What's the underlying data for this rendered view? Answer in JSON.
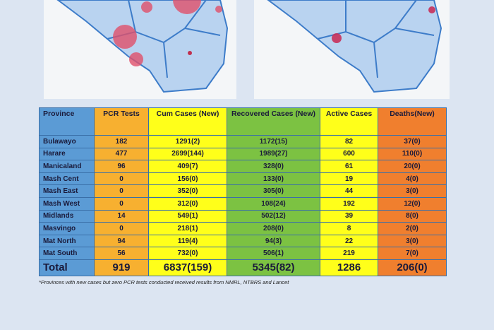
{
  "table": {
    "header": [
      "Province",
      "PCR Tests",
      "Cum Cases (New)",
      "Recovered Cases (New)",
      "Active Cases",
      "Deaths(New)"
    ],
    "rows": [
      [
        "Bulawayo",
        "182",
        "1291(2)",
        "1172(15)",
        "82",
        "37(0)"
      ],
      [
        "Harare",
        "477",
        "2699(144)",
        "1989(27)",
        "600",
        "110(0)"
      ],
      [
        "Manicaland",
        "96",
        "409(7)",
        "328(0)",
        "61",
        "20(0)"
      ],
      [
        "Mash Cent",
        "0",
        "156(0)",
        "133(0)",
        "19",
        "4(0)"
      ],
      [
        "Mash East",
        "0",
        "352(0)",
        "305(0)",
        "44",
        "3(0)"
      ],
      [
        "Mash West",
        "0",
        "312(0)",
        "108(24)",
        "192",
        "12(0)"
      ],
      [
        "Midlands",
        "14",
        "549(1)",
        "502(12)",
        "39",
        "8(0)"
      ],
      [
        "Masvingo",
        "0",
        "218(1)",
        "208(0)",
        "8",
        "2(0)"
      ],
      [
        "Mat North",
        "94",
        "119(4)",
        "94(3)",
        "22",
        "3(0)"
      ],
      [
        "Mat South",
        "56",
        "732(0)",
        "506(1)",
        "219",
        "7(0)"
      ]
    ],
    "total": [
      "Total",
      "919",
      "6837(159)",
      "5345(82)",
      "1286",
      "206(0)"
    ]
  },
  "footnote": "*Provinces with new cases but zero PCR tests conducted received results from NMRL, NTBRS and Lancet"
}
